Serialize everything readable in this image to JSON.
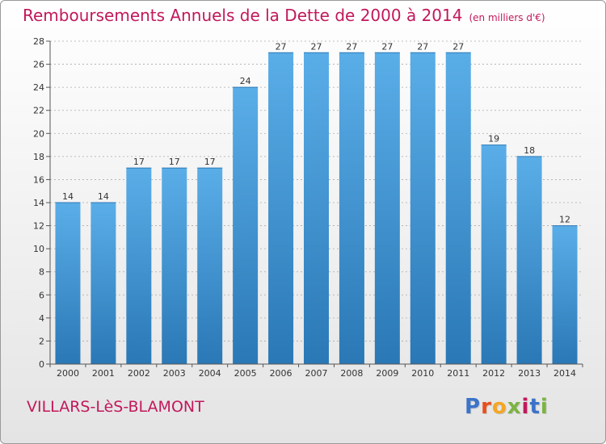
{
  "header": {
    "title": "Remboursements Annuels de la Dette de 2000 à 2014",
    "unit": "(en milliers d'€)"
  },
  "footer": {
    "commune": "VILLARS-LèS-BLAMONT",
    "logo": [
      "P",
      "r",
      "o",
      "x",
      "i",
      "t",
      "i"
    ],
    "logo_colors": [
      "#3b73c9",
      "#e94e1b",
      "#f5a623",
      "#7cb342",
      "#c2185b",
      "#3b73c9",
      "#7cb342"
    ]
  },
  "colors": {
    "bar_light": "#5aaee8",
    "bar_dark": "#2a78b6",
    "text_accent": "#c2185b",
    "grid": "#aaaaaa"
  },
  "chart_data": {
    "type": "bar",
    "title": "Remboursements Annuels de la Dette de 2000 à 2014",
    "subtitle": "(en milliers d'€)",
    "xlabel": "",
    "ylabel": "",
    "categories": [
      "2000",
      "2001",
      "2002",
      "2003",
      "2004",
      "2005",
      "2006",
      "2007",
      "2008",
      "2009",
      "2010",
      "2011",
      "2012",
      "2013",
      "2014"
    ],
    "values": [
      14,
      14,
      17,
      17,
      17,
      24,
      27,
      27,
      27,
      27,
      27,
      27,
      19,
      18,
      12
    ],
    "ylim": [
      0,
      28
    ],
    "yticks": [
      0,
      2,
      4,
      6,
      8,
      10,
      12,
      14,
      16,
      18,
      20,
      22,
      24,
      26,
      28
    ],
    "grid": true,
    "grid_style": "dashed"
  }
}
